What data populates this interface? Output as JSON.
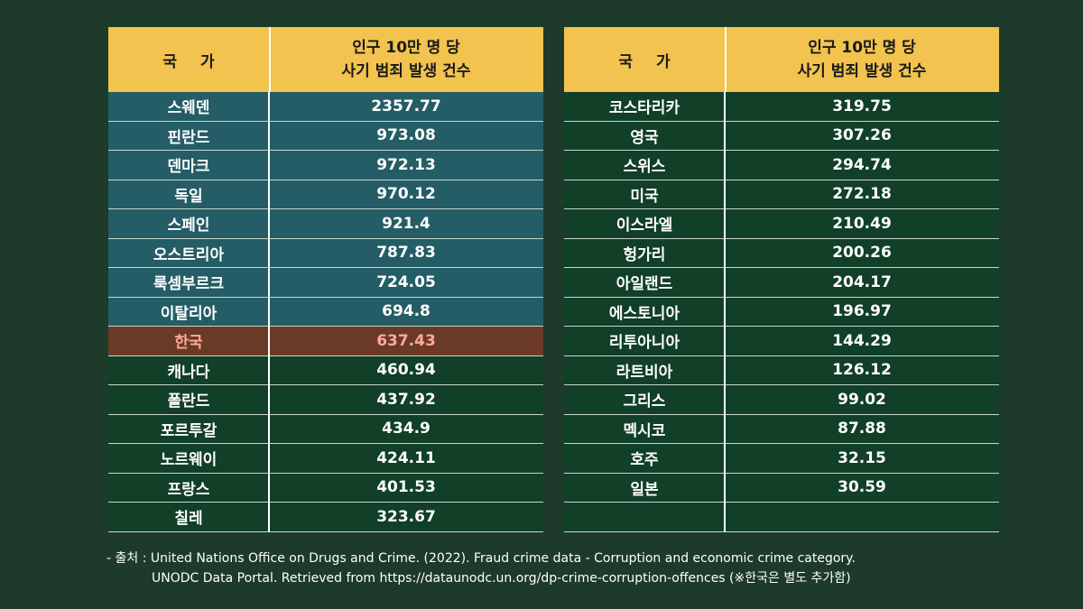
{
  "header": {
    "col1": "국 가",
    "col2_line1": "인구 10만 명 당",
    "col2_line2": "사기 범죄 발생 건수"
  },
  "colors": {
    "background": "#1d3a2b",
    "header_bg": "#f2c34e",
    "top_group_bg": "#245d66",
    "korea_bg": "#6b3a26",
    "korea_text": "#ffa89c",
    "table_bg": "#113f28"
  },
  "left_rows": [
    {
      "country": "스웨덴",
      "value": "2357.77",
      "group": "blue"
    },
    {
      "country": "핀란드",
      "value": "973.08",
      "group": "blue"
    },
    {
      "country": "덴마크",
      "value": "972.13",
      "group": "blue"
    },
    {
      "country": "독일",
      "value": "970.12",
      "group": "blue"
    },
    {
      "country": "스페인",
      "value": "921.4",
      "group": "blue"
    },
    {
      "country": "오스트리아",
      "value": "787.83",
      "group": "blue"
    },
    {
      "country": "룩셈부르크",
      "value": "724.05",
      "group": "blue"
    },
    {
      "country": "이탈리아",
      "value": "694.8",
      "group": "blue"
    },
    {
      "country": "한국",
      "value": "637.43",
      "group": "korea"
    },
    {
      "country": "캐나다",
      "value": "460.94",
      "group": "plain"
    },
    {
      "country": "폴란드",
      "value": "437.92",
      "group": "plain"
    },
    {
      "country": "포르투갈",
      "value": "434.9",
      "group": "plain"
    },
    {
      "country": "노르웨이",
      "value": "424.11",
      "group": "plain"
    },
    {
      "country": "프랑스",
      "value": "401.53",
      "group": "plain"
    },
    {
      "country": "칠레",
      "value": "323.67",
      "group": "plain"
    }
  ],
  "right_rows": [
    {
      "country": "코스타리카",
      "value": "319.75"
    },
    {
      "country": "영국",
      "value": "307.26"
    },
    {
      "country": "스위스",
      "value": "294.74"
    },
    {
      "country": "미국",
      "value": "272.18"
    },
    {
      "country": "이스라엘",
      "value": "210.49"
    },
    {
      "country": "헝가리",
      "value": "200.26"
    },
    {
      "country": "아일랜드",
      "value": "204.17"
    },
    {
      "country": "에스토니아",
      "value": "196.97"
    },
    {
      "country": "리투아니아",
      "value": "144.29"
    },
    {
      "country": "라트비아",
      "value": "126.12"
    },
    {
      "country": "그리스",
      "value": "99.02"
    },
    {
      "country": "멕시코",
      "value": "87.88"
    },
    {
      "country": "호주",
      "value": "32.15"
    },
    {
      "country": "일본",
      "value": "30.59"
    },
    {
      "country": "",
      "value": ""
    }
  ],
  "footer": {
    "line1": "- 출처 : United Nations Office on Drugs and Crime. (2022). Fraud crime data - Corruption and economic crime category.",
    "line2": "UNODC Data Portal. Retrieved from https://dataunodc.un.org/dp-crime-corruption-offences (※한국은 별도 추가함)"
  }
}
